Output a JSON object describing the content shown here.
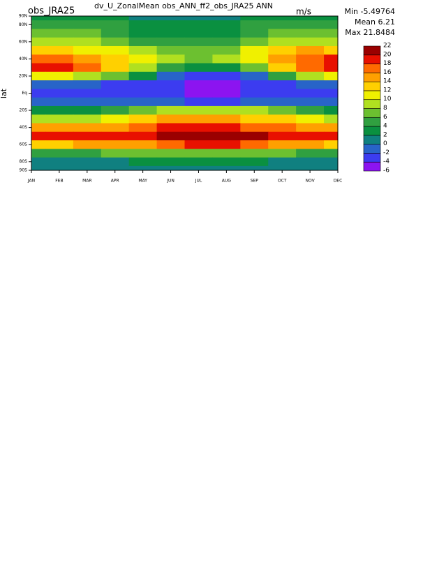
{
  "chart_data": {
    "type": "contour",
    "title": "dv_U_ZonalMean obs_ANN_ff2_obs_JRA25  ANN",
    "subtitle": "obs_JRA25",
    "units": "m/s",
    "ylabel": "lat",
    "stats": [
      {
        "label": "Min",
        "value": -5.49764
      },
      {
        "label": "Mean",
        "value": 6.21
      },
      {
        "label": "Max",
        "value": 21.8484
      }
    ],
    "categories": [
      "JAN",
      "FEB",
      "MAR",
      "APR",
      "MAY",
      "JUN",
      "JUL",
      "AUG",
      "SEP",
      "OCT",
      "NOV",
      "DEC"
    ],
    "y": [
      90,
      80,
      70,
      60,
      50,
      40,
      30,
      20,
      10,
      0,
      -10,
      -20,
      -30,
      -40,
      -50,
      -60,
      -70,
      -80,
      -90
    ],
    "ylim": [
      -90,
      90
    ],
    "yticks": [
      {
        "value": 90,
        "label": "90N"
      },
      {
        "value": 80,
        "label": "80N"
      },
      {
        "value": 60,
        "label": "60N"
      },
      {
        "value": 40,
        "label": "40N"
      },
      {
        "value": 20,
        "label": "20N"
      },
      {
        "value": 0,
        "label": "Eq"
      },
      {
        "value": -20,
        "label": "20S"
      },
      {
        "value": -40,
        "label": "40S"
      },
      {
        "value": -60,
        "label": "60S"
      },
      {
        "value": -80,
        "label": "80S"
      },
      {
        "value": -90,
        "label": "90S"
      }
    ],
    "levels": [
      -6,
      -4,
      -2,
      0,
      2,
      4,
      6,
      8,
      10,
      12,
      14,
      16,
      18,
      20,
      22
    ],
    "colors": [
      "#8c14f0",
      "#3c3cf0",
      "#2864c8",
      "#108080",
      "#0a9040",
      "#30a040",
      "#6cc030",
      "#b0e020",
      "#f0f000",
      "#ffd000",
      "#ffa000",
      "#ff6a00",
      "#e81000",
      "#9a0000"
    ],
    "values": [
      [
        2,
        2,
        2,
        2,
        1,
        1,
        1,
        1,
        2,
        2,
        2,
        2
      ],
      [
        5,
        5,
        5,
        4,
        3,
        3,
        3,
        3,
        4,
        5,
        5,
        5
      ],
      [
        7,
        7,
        6,
        5,
        3,
        2,
        2,
        3,
        4,
        6,
        7,
        7
      ],
      [
        9,
        9,
        8,
        7,
        5,
        4,
        4,
        4,
        6,
        8,
        9,
        9
      ],
      [
        13,
        12,
        11,
        10,
        8,
        6,
        6,
        7,
        10,
        12,
        14,
        13
      ],
      [
        17,
        16,
        15,
        13,
        10,
        8,
        7,
        8,
        11,
        15,
        17,
        18
      ],
      [
        19,
        18,
        16,
        12,
        8,
        4,
        2,
        3,
        6,
        12,
        17,
        19
      ],
      [
        10,
        10,
        9,
        6,
        2,
        -2,
        -3,
        -3,
        -1,
        4,
        8,
        10
      ],
      [
        -2,
        -2,
        -2,
        -3,
        -3,
        -4,
        -5,
        -5,
        -4,
        -3,
        -2,
        -2
      ],
      [
        -3,
        -3,
        -3,
        -3,
        -3,
        -4,
        -5.3,
        -5,
        -4,
        -3,
        -3,
        -3
      ],
      [
        -2,
        -2,
        -2,
        -2,
        -2,
        -2,
        -3,
        -3,
        -2,
        -2,
        -2,
        -1
      ],
      [
        2,
        2,
        3,
        4,
        6,
        8,
        9,
        9,
        8,
        6,
        4,
        2
      ],
      [
        8,
        8,
        9,
        10,
        12,
        14,
        14,
        14,
        13,
        12,
        10,
        8
      ],
      [
        14,
        14,
        15,
        15,
        16,
        18,
        18,
        18,
        17,
        16,
        15,
        14
      ],
      [
        18,
        18,
        19,
        19,
        19,
        20,
        21.8,
        21.5,
        20,
        19,
        18,
        18
      ],
      [
        13,
        13,
        14,
        14,
        15,
        17,
        18,
        18,
        17,
        15,
        14,
        13
      ],
      [
        5,
        5,
        5,
        6,
        6,
        7,
        7,
        7,
        7,
        6,
        5,
        5
      ],
      [
        1,
        1,
        1,
        1,
        2,
        2,
        2,
        2,
        2,
        1,
        1,
        1
      ],
      [
        0,
        0,
        0,
        0,
        0,
        0,
        0,
        0,
        0,
        0,
        0,
        0
      ]
    ]
  }
}
